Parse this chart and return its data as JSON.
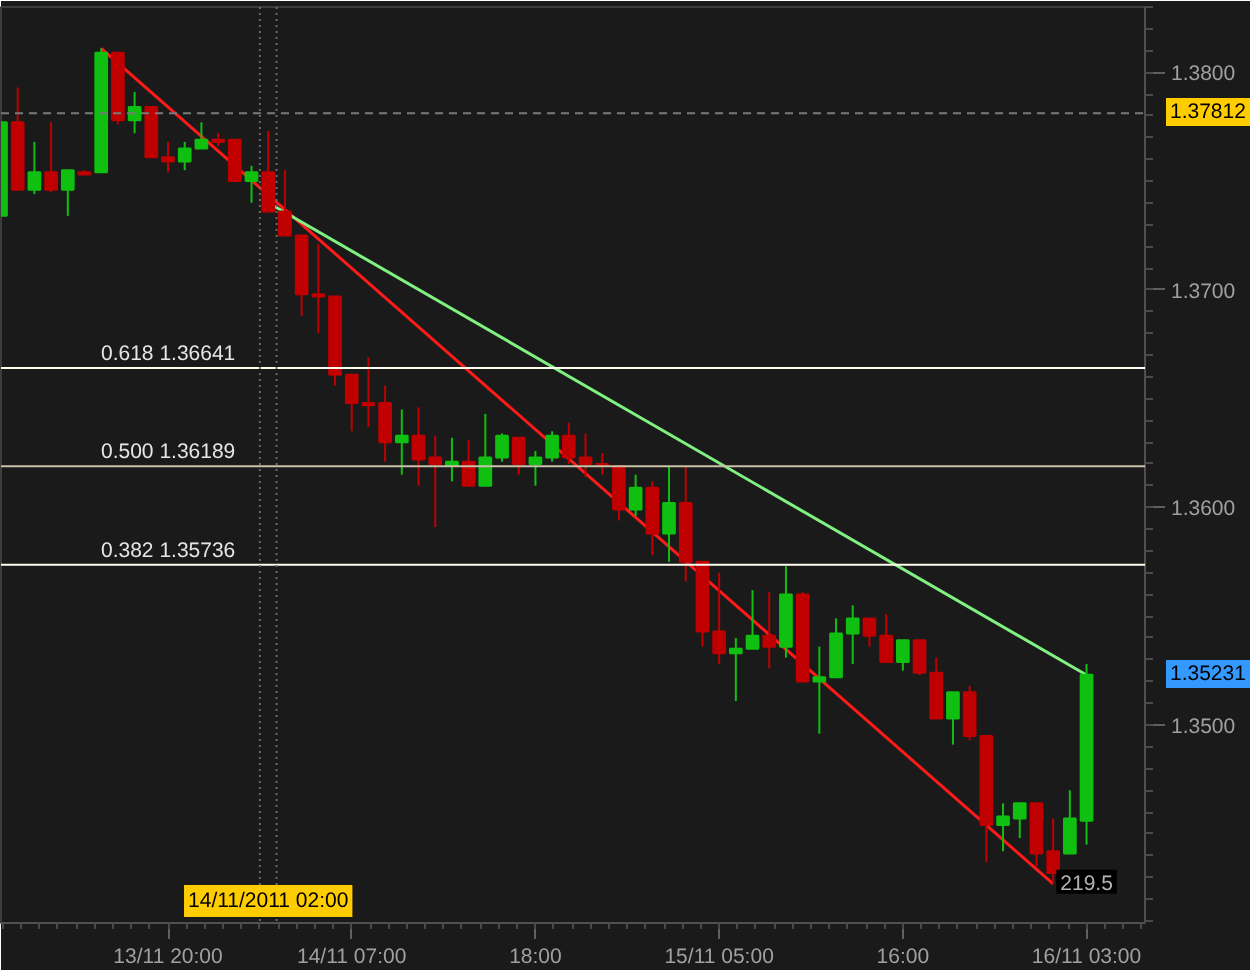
{
  "chart_data": {
    "type": "candlestick",
    "x": [
      "2011-11-13T10:00",
      "2011-11-13T11:00",
      "2011-11-13T12:00",
      "2011-11-13T13:00",
      "2011-11-13T14:00",
      "2011-11-13T15:00",
      "2011-11-13T16:00",
      "2011-11-13T17:00",
      "2011-11-13T18:00",
      "2011-11-13T19:00",
      "2011-11-13T20:00",
      "2011-11-13T21:00",
      "2011-11-13T22:00",
      "2011-11-13T23:00",
      "2011-11-14T00:00",
      "2011-11-14T01:00",
      "2011-11-14T02:00",
      "2011-11-14T03:00",
      "2011-11-14T04:00",
      "2011-11-14T05:00",
      "2011-11-14T06:00",
      "2011-11-14T07:00",
      "2011-11-14T08:00",
      "2011-11-14T09:00",
      "2011-11-14T10:00",
      "2011-11-14T11:00",
      "2011-11-14T12:00",
      "2011-11-14T13:00",
      "2011-11-14T14:00",
      "2011-11-14T15:00",
      "2011-11-14T16:00",
      "2011-11-14T17:00",
      "2011-11-14T18:00",
      "2011-11-14T19:00",
      "2011-11-14T20:00",
      "2011-11-14T21:00",
      "2011-11-14T22:00",
      "2011-11-14T23:00",
      "2011-11-15T00:00",
      "2011-11-15T01:00",
      "2011-11-15T02:00",
      "2011-11-15T03:00",
      "2011-11-15T04:00",
      "2011-11-15T05:00",
      "2011-11-15T06:00",
      "2011-11-15T07:00",
      "2011-11-15T08:00",
      "2011-11-15T09:00",
      "2011-11-15T10:00",
      "2011-11-15T11:00",
      "2011-11-15T12:00",
      "2011-11-15T13:00",
      "2011-11-15T14:00",
      "2011-11-15T15:00",
      "2011-11-15T16:00",
      "2011-11-15T17:00",
      "2011-11-15T18:00",
      "2011-11-15T19:00",
      "2011-11-15T20:00",
      "2011-11-15T21:00",
      "2011-11-15T22:00",
      "2011-11-15T23:00",
      "2011-11-16T00:00",
      "2011-11-16T01:00",
      "2011-11-16T02:00",
      "2011-11-16T03:00"
    ],
    "ohlc": [
      [
        1.3734,
        1.3777,
        1.3734,
        1.3777
      ],
      [
        1.3777,
        1.3793,
        1.3746,
        1.3746
      ],
      [
        1.3746,
        1.3768,
        1.3744,
        1.3754
      ],
      [
        1.3754,
        1.3777,
        1.3745,
        1.3746
      ],
      [
        1.3746,
        1.3755,
        1.3734,
        1.3755
      ],
      [
        1.3754,
        1.3755,
        1.3753,
        1.3753
      ],
      [
        1.3754,
        1.3811,
        1.3754,
        1.3809
      ],
      [
        1.3809,
        1.3809,
        1.3776,
        1.3778
      ],
      [
        1.3778,
        1.3791,
        1.3772,
        1.3784
      ],
      [
        1.3784,
        1.3784,
        1.3761,
        1.3761
      ],
      [
        1.3761,
        1.3768,
        1.3754,
        1.3759
      ],
      [
        1.3759,
        1.3768,
        1.3755,
        1.3765
      ],
      [
        1.3765,
        1.3777,
        1.3765,
        1.3769
      ],
      [
        1.3769,
        1.3772,
        1.3766,
        1.3768
      ],
      [
        1.3769,
        1.3769,
        1.375,
        1.375
      ],
      [
        1.375,
        1.3757,
        1.374,
        1.3754
      ],
      [
        1.3754,
        1.3773,
        1.3736,
        1.3736
      ],
      [
        1.3736,
        1.3755,
        1.3725,
        1.3725
      ],
      [
        1.3725,
        1.3725,
        1.3688,
        1.3698
      ],
      [
        1.3698,
        1.3721,
        1.368,
        1.3697
      ],
      [
        1.3697,
        1.3697,
        1.3656,
        1.3661
      ],
      [
        1.3661,
        1.3661,
        1.3635,
        1.3648
      ],
      [
        1.3648,
        1.3669,
        1.3637,
        1.3647
      ],
      [
        1.3648,
        1.3656,
        1.3621,
        1.363
      ],
      [
        1.363,
        1.3645,
        1.3615,
        1.3633
      ],
      [
        1.3633,
        1.3646,
        1.361,
        1.3622
      ],
      [
        1.3623,
        1.3633,
        1.3591,
        1.362
      ],
      [
        1.3619,
        1.3632,
        1.3612,
        1.3621
      ],
      [
        1.3621,
        1.3631,
        1.361,
        1.361
      ],
      [
        1.361,
        1.3643,
        1.361,
        1.3623
      ],
      [
        1.3623,
        1.3634,
        1.3621,
        1.3633
      ],
      [
        1.3632,
        1.3632,
        1.3615,
        1.362
      ],
      [
        1.362,
        1.3626,
        1.361,
        1.3623
      ],
      [
        1.3623,
        1.3635,
        1.3621,
        1.3633
      ],
      [
        1.3633,
        1.3639,
        1.362,
        1.3623
      ],
      [
        1.3623,
        1.3634,
        1.3614,
        1.362
      ],
      [
        1.362,
        1.3625,
        1.3615,
        1.3619
      ],
      [
        1.3619,
        1.3619,
        1.3594,
        1.3599
      ],
      [
        1.3599,
        1.3615,
        1.3596,
        1.3609
      ],
      [
        1.3609,
        1.3612,
        1.3578,
        1.3588
      ],
      [
        1.3588,
        1.3619,
        1.3575,
        1.3602
      ],
      [
        1.3602,
        1.3619,
        1.3566,
        1.3575
      ],
      [
        1.3575,
        1.3575,
        1.3536,
        1.3543
      ],
      [
        1.3543,
        1.357,
        1.3528,
        1.3533
      ],
      [
        1.3533,
        1.354,
        1.3511,
        1.3535
      ],
      [
        1.3535,
        1.3562,
        1.3535,
        1.3541
      ],
      [
        1.3541,
        1.3561,
        1.3526,
        1.3536
      ],
      [
        1.3536,
        1.3573,
        1.3531,
        1.356
      ],
      [
        1.356,
        1.3561,
        1.352,
        1.352
      ],
      [
        1.352,
        1.3536,
        1.3496,
        1.3522
      ],
      [
        1.3522,
        1.3549,
        1.3522,
        1.3542
      ],
      [
        1.3542,
        1.3555,
        1.3528,
        1.3549
      ],
      [
        1.3549,
        1.3549,
        1.3536,
        1.3541
      ],
      [
        1.3541,
        1.3551,
        1.3529,
        1.3529
      ],
      [
        1.3529,
        1.3539,
        1.3525,
        1.3539
      ],
      [
        1.3539,
        1.3539,
        1.3523,
        1.3524
      ],
      [
        1.3524,
        1.3531,
        1.3503,
        1.3503
      ],
      [
        1.3503,
        1.3515,
        1.3491,
        1.3515
      ],
      [
        1.3515,
        1.3518,
        1.3493,
        1.3495
      ],
      [
        1.3495,
        1.3495,
        1.3437,
        1.3454
      ],
      [
        1.3454,
        1.3464,
        1.3442,
        1.3458
      ],
      [
        1.3457,
        1.3464,
        1.3448,
        1.3464
      ],
      [
        1.3464,
        1.3464,
        1.3435,
        1.3441
      ],
      [
        1.3442,
        1.3457,
        1.3427,
        1.3432
      ],
      [
        1.3441,
        1.347,
        1.3441,
        1.3457
      ],
      [
        1.3456,
        1.3528,
        1.3445,
        1.35231
      ]
    ],
    "colors": [
      "#10c010",
      "#c00000",
      "#10c010",
      "#c00000",
      "#10c010",
      "#c00000",
      "#10c010",
      "#c00000",
      "#10c010",
      "#c00000",
      "#c00000",
      "#10c010",
      "#10c010",
      "#c00000",
      "#c00000",
      "#10c010",
      "#c00000",
      "#c00000",
      "#c00000",
      "#c00000",
      "#c00000",
      "#c00000",
      "#c00000",
      "#c00000",
      "#10c010",
      "#c00000",
      "#c00000",
      "#10c010",
      "#c00000",
      "#10c010",
      "#10c010",
      "#c00000",
      "#10c010",
      "#10c010",
      "#c00000",
      "#c00000",
      "#c00000",
      "#c00000",
      "#10c010",
      "#c00000",
      "#10c010",
      "#c00000",
      "#c00000",
      "#c00000",
      "#10c010",
      "#10c010",
      "#c00000",
      "#10c010",
      "#c00000",
      "#10c010",
      "#10c010",
      "#10c010",
      "#c00000",
      "#c00000",
      "#10c010",
      "#c00000",
      "#c00000",
      "#10c010",
      "#c00000",
      "#c00000",
      "#10c010",
      "#10c010",
      "#c00000",
      "#c00000",
      "#10c010",
      "#10c010"
    ],
    "series": [
      {
        "type": "line",
        "x": [
          "2011-11-13T16:00",
          "2011-11-16T01:00"
        ],
        "values": [
          1.3811,
          1.3427
        ],
        "color": "#ff1a1a"
      },
      {
        "type": "line",
        "x": [
          "2011-11-14T02:00",
          "2011-11-16T03:00"
        ],
        "values": [
          1.374,
          1.3523
        ],
        "color": "#80f080"
      }
    ],
    "xlim": [
      "2011-11-13T10:00",
      "2011-11-16T06:30"
    ],
    "ylim": [
      1.3409,
      1.383
    ],
    "xticks": [
      {
        "value": "2011-11-13T20:00",
        "label": "13/11 20:00"
      },
      {
        "value": "2011-11-14T07:00",
        "label": "14/11 07:00"
      },
      {
        "value": "2011-11-14T18:00",
        "label": "18:00"
      },
      {
        "value": "2011-11-15T05:00",
        "label": "15/11 05:00"
      },
      {
        "value": "2011-11-15T16:00",
        "label": "16:00"
      },
      {
        "value": "2011-11-16T03:00",
        "label": "16/11 03:00"
      }
    ],
    "yticks": [
      {
        "value": 1.35,
        "label": "1.3500"
      },
      {
        "value": 1.36,
        "label": "1.3600"
      },
      {
        "value": 1.37,
        "label": "1.3700"
      },
      {
        "value": 1.38,
        "label": "1.3800"
      }
    ],
    "ref_lines": [
      {
        "axis": "y",
        "value": 1.36641,
        "label": "0.618 1.36641",
        "color": "#fffff0"
      },
      {
        "axis": "y",
        "value": 1.36189,
        "label": "0.500 1.36189",
        "color": "#c8c0a8"
      },
      {
        "axis": "y",
        "value": 1.35736,
        "label": "0.382 1.35736",
        "color": "#fffff0"
      },
      {
        "axis": "y",
        "value": 1.37812,
        "label": "1.37812",
        "color": "#7a7a7a",
        "line_style": "dashed"
      },
      {
        "axis": "x",
        "value": "2011-11-14T01:30",
        "color": "#6a6a6a",
        "line_style": "dotted"
      },
      {
        "axis": "x",
        "value": "2011-11-14T02:30",
        "color": "#6a6a6a",
        "line_style": "dotted"
      }
    ],
    "annotations": [
      {
        "text": "14/11/2011 02:00",
        "x": "2011-11-14T02:00"
      },
      {
        "text": "219.5",
        "x": "2011-11-16T03:00",
        "y": 1.3428
      },
      "1.35231"
    ]
  }
}
